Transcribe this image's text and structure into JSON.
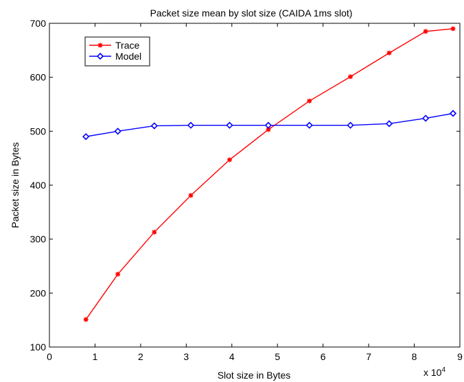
{
  "chart_data": {
    "type": "line",
    "title": "Packet size mean by slot size (CAIDA 1ms slot)",
    "xlabel": "Slot size in Bytes",
    "ylabel": "Packet size in Bytes",
    "x_multiplier": "x 10",
    "x_multiplier_exp": "4",
    "xlim": [
      0,
      9
    ],
    "ylim": [
      100,
      700
    ],
    "xticks": [
      0,
      1,
      2,
      3,
      4,
      5,
      6,
      7,
      8,
      9
    ],
    "yticks": [
      100,
      200,
      300,
      400,
      500,
      600,
      700
    ],
    "grid": false,
    "legend_position": "top-left",
    "series": [
      {
        "name": "Trace",
        "color": "#ff0000",
        "marker": "asterisk",
        "x": [
          0.8,
          1.5,
          2.3,
          3.1,
          3.95,
          4.8,
          5.7,
          6.6,
          7.45,
          8.25,
          8.85
        ],
        "values": [
          151,
          235,
          313,
          381,
          447,
          503,
          556,
          601,
          645,
          685,
          690
        ]
      },
      {
        "name": "Model",
        "color": "#0000ff",
        "marker": "diamond",
        "x": [
          0.8,
          1.5,
          2.3,
          3.1,
          3.95,
          4.8,
          5.7,
          6.6,
          7.45,
          8.25,
          8.85
        ],
        "values": [
          490,
          500,
          510,
          511,
          511,
          511,
          511,
          511,
          514,
          524,
          533
        ]
      }
    ]
  }
}
